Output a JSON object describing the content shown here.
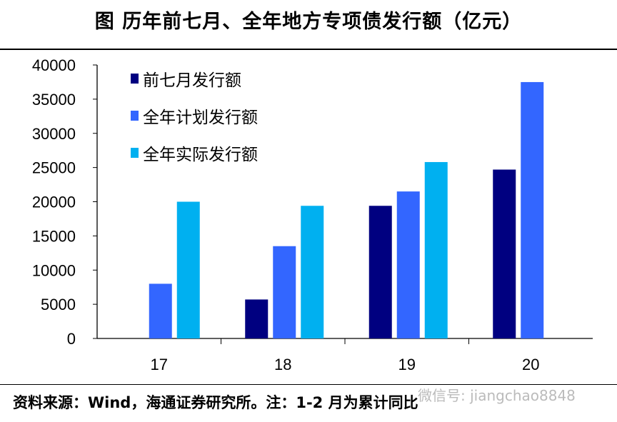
{
  "title": "图  历年前七月、全年地方专项债发行额（亿元）",
  "footer": "资料来源：Wind，海通证券研究所。注：1-2 月为累计同比",
  "watermark": "微信号: jiangchao8848",
  "chart_data": {
    "type": "bar",
    "title": "图  历年前七月、全年地方专项债发行额（亿元）",
    "categories": [
      "17",
      "18",
      "19",
      "20"
    ],
    "series": [
      {
        "name": "前七月发行额",
        "color": "#000080",
        "values": [
          null,
          5700,
          19400,
          24700
        ]
      },
      {
        "name": "全年计划发行额",
        "color": "#3366FF",
        "values": [
          8000,
          13500,
          21500,
          37500
        ]
      },
      {
        "name": "全年实际发行额",
        "color": "#00B0F0",
        "values": [
          20000,
          19400,
          25800,
          null
        ]
      }
    ],
    "ylim": [
      0,
      40000
    ],
    "yticks": [
      "0",
      "5000",
      "10000",
      "15000",
      "20000",
      "25000",
      "30000",
      "35000",
      "40000"
    ],
    "xlabel": "",
    "ylabel": "",
    "grid": false,
    "legend": "top-left"
  }
}
